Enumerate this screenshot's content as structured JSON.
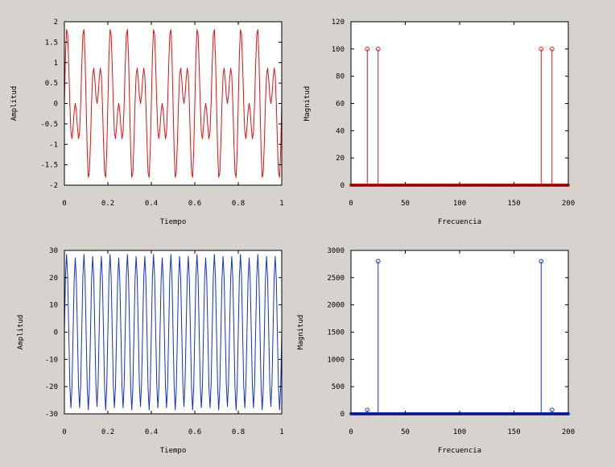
{
  "chart_data": [
    {
      "type": "line",
      "xlabel": "Tiempo",
      "ylabel": "Amplitud",
      "xlim": [
        0,
        1
      ],
      "ylim": [
        -2,
        2
      ],
      "xticks": [
        "0",
        "0.2",
        "0.4",
        "0.6",
        "0.8",
        "1"
      ],
      "yticks": [
        "2",
        "1.5",
        "1",
        "0.5",
        "0",
        "-0.5",
        "-1",
        "-1.5",
        "-2"
      ],
      "grid": false,
      "color": "#e01010",
      "series": [
        {
          "components": [
            {
              "frequency": 15,
              "amplitude": 1
            },
            {
              "frequency": 25,
              "amplitude": 1
            }
          ],
          "sample_rate": 200,
          "samples": 201
        }
      ]
    },
    {
      "type": "stem",
      "xlabel": "Frecuencia",
      "ylabel": "Magnitud",
      "xlim": [
        0,
        200
      ],
      "ylim": [
        0,
        120
      ],
      "xticks": [
        "0",
        "50",
        "100",
        "150",
        "200"
      ],
      "yticks": [
        "120",
        "100",
        "80",
        "60",
        "40",
        "20",
        "0"
      ],
      "grid": false,
      "color": "#e01010",
      "series": [
        {
          "bins": 201,
          "peaks": [
            {
              "x": 15,
              "y": 100
            },
            {
              "x": 25,
              "y": 100
            },
            {
              "x": 175,
              "y": 100
            },
            {
              "x": 185,
              "y": 100
            }
          ]
        }
      ]
    },
    {
      "type": "line",
      "xlabel": "Tiempo",
      "ylabel": "Amplitud",
      "xlim": [
        0,
        1
      ],
      "ylim": [
        -30,
        30
      ],
      "xticks": [
        "0",
        "0.2",
        "0.4",
        "0.6",
        "0.8",
        "1"
      ],
      "yticks": [
        "30",
        "20",
        "10",
        "0",
        "-10",
        "-20",
        "-30"
      ],
      "grid": false,
      "color": "#1030d0",
      "series": [
        {
          "components": [
            {
              "frequency": 25,
              "amplitude": 28
            },
            {
              "frequency": 15,
              "amplitude": 0.7
            }
          ],
          "sample_rate": 200,
          "samples": 201
        }
      ]
    },
    {
      "type": "stem",
      "xlabel": "Frecuencia",
      "ylabel": "Magnitud",
      "xlim": [
        0,
        200
      ],
      "ylim": [
        0,
        3000
      ],
      "xticks": [
        "0",
        "50",
        "100",
        "150",
        "200"
      ],
      "yticks": [
        "3000",
        "2500",
        "2000",
        "1500",
        "1000",
        "500",
        "0"
      ],
      "grid": false,
      "color": "#1030d0",
      "series": [
        {
          "bins": 201,
          "peaks": [
            {
              "x": 15,
              "y": 70
            },
            {
              "x": 25,
              "y": 2800
            },
            {
              "x": 175,
              "y": 2800
            },
            {
              "x": 185,
              "y": 70
            }
          ]
        }
      ]
    }
  ]
}
